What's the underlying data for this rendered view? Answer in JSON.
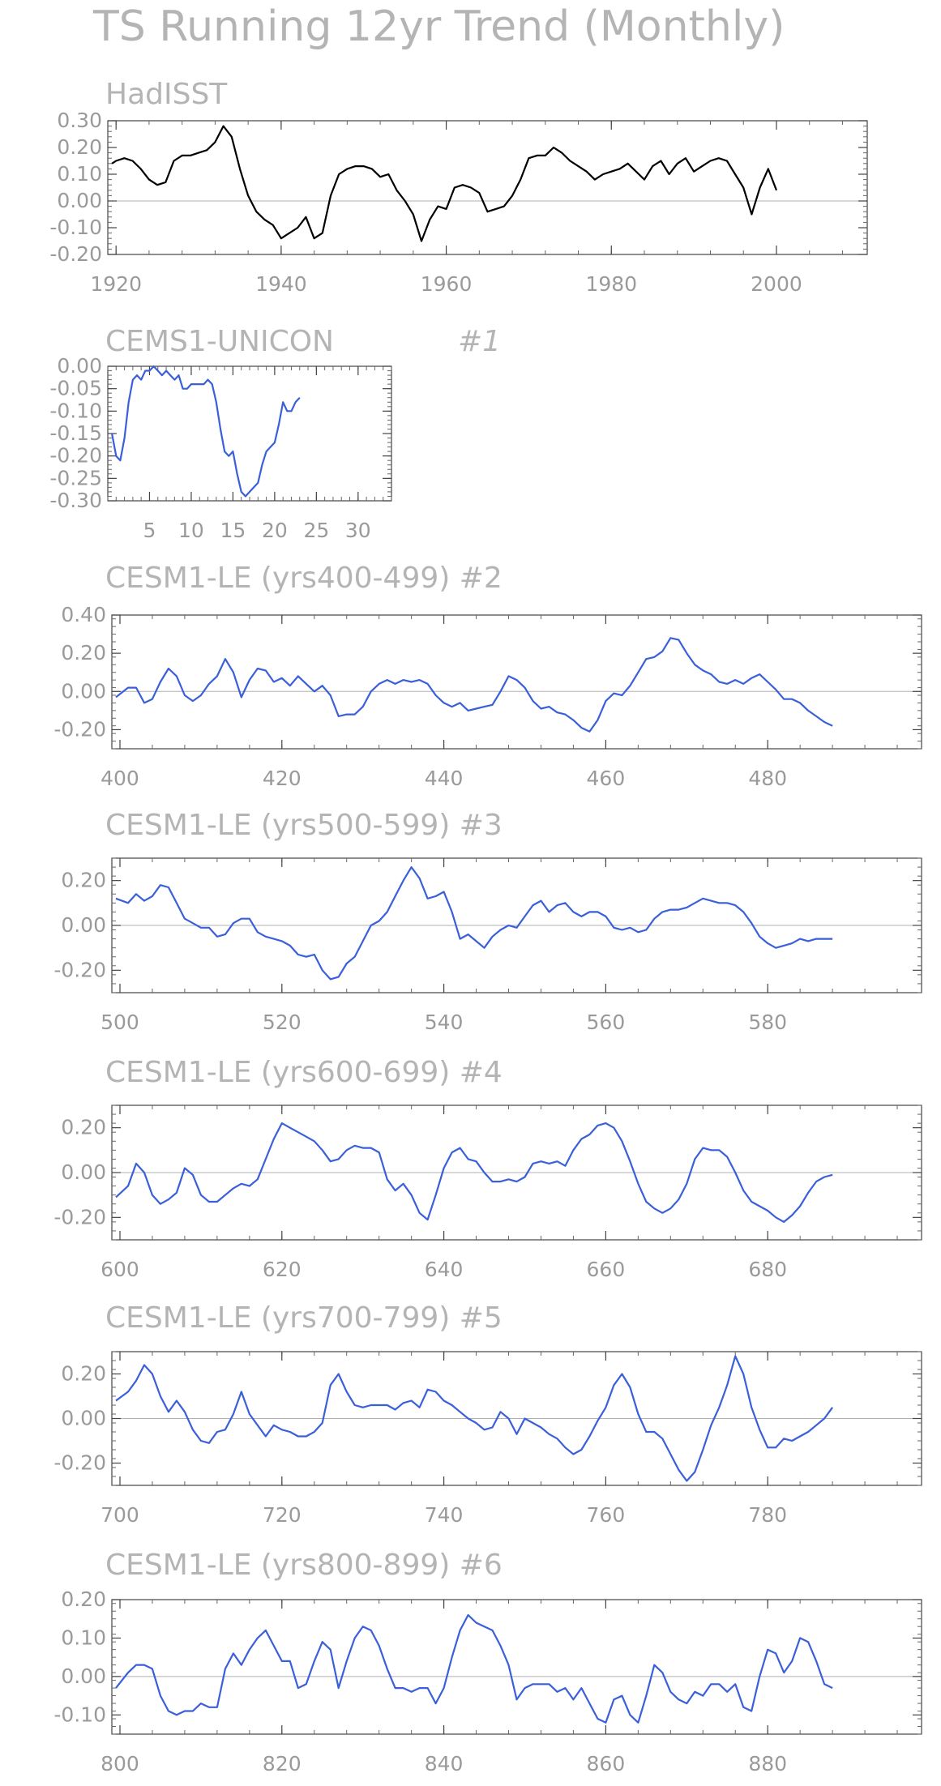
{
  "title": "TS Running 12yr Trend (Monthly)",
  "colors": {
    "observed": "#000000",
    "model": "#3a5fd9",
    "zero_line": "#b0b0b0",
    "frame": "#444444",
    "text": "#a0a0a0"
  },
  "chart_data": [
    {
      "type": "line",
      "title": "HadISST",
      "series_name": "",
      "xlim": [
        1919,
        2011
      ],
      "ylim": [
        -0.2,
        0.3
      ],
      "xticks": [
        1920,
        1940,
        1960,
        1980,
        2000
      ],
      "yticks": [
        0.3,
        0.2,
        0.1,
        0.0,
        -0.1,
        -0.2
      ],
      "ytick_labels": [
        "0.30",
        "0.20",
        "0.10",
        "0.00",
        "-0.10",
        "-0.20"
      ],
      "zero_line": 0,
      "x": [
        1919.5,
        1920,
        1921,
        1922,
        1923,
        1924,
        1925,
        1926,
        1927,
        1928,
        1929,
        1930,
        1931,
        1932,
        1933,
        1934,
        1935,
        1936,
        1937,
        1938,
        1939,
        1940,
        1941,
        1942,
        1943,
        1944,
        1945,
        1946,
        1947,
        1948,
        1949,
        1950,
        1951,
        1952,
        1953,
        1954,
        1955,
        1956,
        1957,
        1958,
        1959,
        1960,
        1961,
        1962,
        1963,
        1964,
        1965,
        1966,
        1967,
        1968,
        1969,
        1970,
        1971,
        1972,
        1973,
        1974,
        1975,
        1976,
        1977,
        1978,
        1979,
        1980,
        1981,
        1982,
        1983,
        1984,
        1985,
        1986,
        1987,
        1988,
        1989,
        1990,
        1991,
        1992,
        1993,
        1994,
        1995,
        1996,
        1997,
        1998,
        1999,
        2000
      ],
      "y": [
        0.14,
        0.15,
        0.16,
        0.15,
        0.12,
        0.08,
        0.06,
        0.07,
        0.15,
        0.17,
        0.17,
        0.18,
        0.19,
        0.22,
        0.28,
        0.24,
        0.12,
        0.02,
        -0.04,
        -0.07,
        -0.09,
        -0.14,
        -0.12,
        -0.1,
        -0.06,
        -0.14,
        -0.12,
        0.02,
        0.1,
        0.12,
        0.13,
        0.13,
        0.12,
        0.09,
        0.1,
        0.04,
        0.0,
        -0.05,
        -0.15,
        -0.07,
        -0.02,
        -0.03,
        0.05,
        0.06,
        0.05,
        0.03,
        -0.04,
        -0.03,
        -0.02,
        0.02,
        0.08,
        0.16,
        0.17,
        0.17,
        0.2,
        0.18,
        0.15,
        0.13,
        0.11,
        0.08,
        0.1,
        0.11,
        0.12,
        0.14,
        0.11,
        0.08,
        0.13,
        0.15,
        0.1,
        0.14,
        0.16,
        0.11,
        0.13,
        0.15,
        0.16,
        0.15,
        0.1,
        0.05,
        -0.05,
        0.05,
        0.12,
        0.04
      ]
    },
    {
      "type": "line",
      "title": "CEMS1-UNICON",
      "annotation": "#1",
      "xlim": [
        0,
        34
      ],
      "ylim": [
        -0.3,
        0.0
      ],
      "xticks": [
        5,
        10,
        15,
        20,
        25,
        30
      ],
      "yticks": [
        0.0,
        -0.05,
        -0.1,
        -0.15,
        -0.2,
        -0.25,
        -0.3
      ],
      "ytick_labels": [
        "0.00",
        "-0.05",
        "-0.10",
        "-0.15",
        "-0.20",
        "-0.25",
        "-0.30"
      ],
      "x": [
        0.5,
        1,
        1.5,
        2,
        2.5,
        3,
        3.5,
        4,
        4.5,
        5,
        5.5,
        6,
        6.5,
        7,
        7.5,
        8,
        8.5,
        9,
        9.5,
        10,
        10.5,
        11,
        11.5,
        12,
        12.5,
        13,
        13.5,
        14,
        14.5,
        15,
        15.5,
        16,
        16.5,
        17,
        17.5,
        18,
        18.5,
        19,
        19.5,
        20,
        20.5,
        21,
        21.5,
        22,
        22.5,
        23
      ],
      "y": [
        -0.15,
        -0.2,
        -0.21,
        -0.16,
        -0.08,
        -0.03,
        -0.02,
        -0.03,
        -0.01,
        -0.01,
        0.0,
        -0.01,
        -0.02,
        -0.01,
        -0.02,
        -0.03,
        -0.02,
        -0.05,
        -0.05,
        -0.04,
        -0.04,
        -0.04,
        -0.04,
        -0.03,
        -0.04,
        -0.08,
        -0.14,
        -0.19,
        -0.2,
        -0.19,
        -0.24,
        -0.28,
        -0.29,
        -0.28,
        -0.27,
        -0.26,
        -0.22,
        -0.19,
        -0.18,
        -0.17,
        -0.13,
        -0.08,
        -0.1,
        -0.1,
        -0.08,
        -0.07
      ]
    },
    {
      "type": "line",
      "title": "CESM1-LE (yrs400-499) #2",
      "xlim": [
        399,
        499
      ],
      "ylim": [
        -0.3,
        0.4
      ],
      "xticks": [
        400,
        420,
        440,
        460,
        480
      ],
      "yticks": [
        0.4,
        0.2,
        0.0,
        -0.2
      ],
      "ytick_labels": [
        "0.40",
        "0.20",
        "0.00",
        "-0.20"
      ],
      "zero_line": 0,
      "x": [
        399.5,
        401,
        402,
        403,
        404,
        405,
        406,
        407,
        408,
        409,
        410,
        411,
        412,
        413,
        414,
        415,
        416,
        417,
        418,
        419,
        420,
        421,
        422,
        423,
        424,
        425,
        426,
        427,
        428,
        429,
        430,
        431,
        432,
        433,
        434,
        435,
        436,
        437,
        438,
        439,
        440,
        441,
        442,
        443,
        444,
        445,
        446,
        447,
        448,
        449,
        450,
        451,
        452,
        453,
        454,
        455,
        456,
        457,
        458,
        459,
        460,
        461,
        462,
        463,
        464,
        465,
        466,
        467,
        468,
        469,
        470,
        471,
        472,
        473,
        474,
        475,
        476,
        477,
        478,
        479,
        480,
        481,
        482,
        483,
        484,
        485,
        486,
        487,
        488
      ],
      "y": [
        -0.03,
        0.02,
        0.02,
        -0.06,
        -0.04,
        0.05,
        0.12,
        0.08,
        -0.02,
        -0.05,
        -0.02,
        0.04,
        0.08,
        0.17,
        0.1,
        -0.03,
        0.06,
        0.12,
        0.11,
        0.05,
        0.07,
        0.03,
        0.08,
        0.04,
        0.0,
        0.03,
        -0.02,
        -0.13,
        -0.12,
        -0.12,
        -0.08,
        0.0,
        0.04,
        0.06,
        0.04,
        0.06,
        0.05,
        0.06,
        0.04,
        -0.02,
        -0.06,
        -0.08,
        -0.06,
        -0.1,
        -0.09,
        -0.08,
        -0.07,
        0.0,
        0.08,
        0.06,
        0.02,
        -0.05,
        -0.09,
        -0.08,
        -0.11,
        -0.12,
        -0.15,
        -0.19,
        -0.21,
        -0.15,
        -0.05,
        -0.01,
        -0.02,
        0.03,
        0.1,
        0.17,
        0.18,
        0.21,
        0.28,
        0.27,
        0.2,
        0.14,
        0.11,
        0.09,
        0.05,
        0.04,
        0.06,
        0.04,
        0.07,
        0.09,
        0.05,
        0.01,
        -0.04,
        -0.04,
        -0.06,
        -0.1,
        -0.13,
        -0.16,
        -0.18
      ]
    },
    {
      "type": "line",
      "title": "CESM1-LE (yrs500-599) #3",
      "xlim": [
        499,
        599
      ],
      "ylim": [
        -0.3,
        0.3
      ],
      "xticks": [
        500,
        520,
        540,
        560,
        580
      ],
      "yticks": [
        0.2,
        0.0,
        -0.2
      ],
      "ytick_labels": [
        "0.20",
        "0.00",
        "-0.20"
      ],
      "zero_line": 0,
      "x": [
        499.5,
        501,
        502,
        503,
        504,
        505,
        506,
        507,
        508,
        509,
        510,
        511,
        512,
        513,
        514,
        515,
        516,
        517,
        518,
        519,
        520,
        521,
        522,
        523,
        524,
        525,
        526,
        527,
        528,
        529,
        530,
        531,
        532,
        533,
        534,
        535,
        536,
        537,
        538,
        539,
        540,
        541,
        542,
        543,
        544,
        545,
        546,
        547,
        548,
        549,
        550,
        551,
        552,
        553,
        554,
        555,
        556,
        557,
        558,
        559,
        560,
        561,
        562,
        563,
        564,
        565,
        566,
        567,
        568,
        569,
        570,
        571,
        572,
        573,
        574,
        575,
        576,
        577,
        578,
        579,
        580,
        581,
        582,
        583,
        584,
        585,
        586,
        587,
        588
      ],
      "y": [
        0.12,
        0.1,
        0.14,
        0.11,
        0.13,
        0.18,
        0.17,
        0.1,
        0.03,
        0.01,
        -0.01,
        -0.01,
        -0.05,
        -0.04,
        0.01,
        0.03,
        0.03,
        -0.03,
        -0.05,
        -0.06,
        -0.07,
        -0.09,
        -0.13,
        -0.14,
        -0.13,
        -0.2,
        -0.24,
        -0.23,
        -0.17,
        -0.14,
        -0.07,
        0.0,
        0.02,
        0.06,
        0.13,
        0.2,
        0.26,
        0.21,
        0.12,
        0.13,
        0.15,
        0.06,
        -0.06,
        -0.04,
        -0.07,
        -0.1,
        -0.05,
        -0.02,
        0.0,
        -0.01,
        0.04,
        0.09,
        0.11,
        0.06,
        0.09,
        0.1,
        0.06,
        0.04,
        0.06,
        0.06,
        0.04,
        -0.01,
        -0.02,
        -0.01,
        -0.03,
        -0.02,
        0.03,
        0.06,
        0.07,
        0.07,
        0.08,
        0.1,
        0.12,
        0.11,
        0.1,
        0.1,
        0.09,
        0.06,
        0.01,
        -0.05,
        -0.08,
        -0.1,
        -0.09,
        -0.08,
        -0.06,
        -0.07,
        -0.06,
        -0.06,
        -0.06
      ]
    },
    {
      "type": "line",
      "title": "CESM1-LE (yrs600-699) #4",
      "xlim": [
        599,
        699
      ],
      "ylim": [
        -0.3,
        0.3
      ],
      "xticks": [
        600,
        620,
        640,
        660,
        680
      ],
      "yticks": [
        0.2,
        0.0,
        -0.2
      ],
      "ytick_labels": [
        "0.20",
        "0.00",
        "-0.20"
      ],
      "zero_line": 0,
      "x": [
        599.5,
        601,
        602,
        603,
        604,
        605,
        606,
        607,
        608,
        609,
        610,
        611,
        612,
        613,
        614,
        615,
        616,
        617,
        618,
        619,
        620,
        621,
        622,
        623,
        624,
        625,
        626,
        627,
        628,
        629,
        630,
        631,
        632,
        633,
        634,
        635,
        636,
        637,
        638,
        639,
        640,
        641,
        642,
        643,
        644,
        645,
        646,
        647,
        648,
        649,
        650,
        651,
        652,
        653,
        654,
        655,
        656,
        657,
        658,
        659,
        660,
        661,
        662,
        663,
        664,
        665,
        666,
        667,
        668,
        669,
        670,
        671,
        672,
        673,
        674,
        675,
        676,
        677,
        678,
        679,
        680,
        681,
        682,
        683,
        684,
        685,
        686,
        687,
        688
      ],
      "y": [
        -0.11,
        -0.06,
        0.04,
        0.0,
        -0.1,
        -0.14,
        -0.12,
        -0.09,
        0.02,
        -0.01,
        -0.1,
        -0.13,
        -0.13,
        -0.1,
        -0.07,
        -0.05,
        -0.06,
        -0.03,
        0.06,
        0.15,
        0.22,
        0.2,
        0.18,
        0.16,
        0.14,
        0.1,
        0.05,
        0.06,
        0.1,
        0.12,
        0.11,
        0.11,
        0.09,
        -0.03,
        -0.08,
        -0.05,
        -0.1,
        -0.18,
        -0.21,
        -0.1,
        0.02,
        0.09,
        0.11,
        0.06,
        0.05,
        0.0,
        -0.04,
        -0.04,
        -0.03,
        -0.04,
        -0.02,
        0.04,
        0.05,
        0.04,
        0.05,
        0.03,
        0.1,
        0.15,
        0.17,
        0.21,
        0.22,
        0.2,
        0.14,
        0.05,
        -0.05,
        -0.13,
        -0.16,
        -0.18,
        -0.16,
        -0.12,
        -0.05,
        0.06,
        0.11,
        0.1,
        0.1,
        0.07,
        0.0,
        -0.08,
        -0.13,
        -0.15,
        -0.17,
        -0.2,
        -0.22,
        -0.19,
        -0.15,
        -0.09,
        -0.04,
        -0.02,
        -0.01
      ]
    },
    {
      "type": "line",
      "title": "CESM1-LE (yrs700-799) #5",
      "xlim": [
        699,
        799
      ],
      "ylim": [
        -0.3,
        0.3
      ],
      "xticks": [
        700,
        720,
        740,
        760,
        780
      ],
      "yticks": [
        0.2,
        0.0,
        -0.2
      ],
      "ytick_labels": [
        "0.20",
        "0.00",
        "-0.20"
      ],
      "zero_line": 0,
      "x": [
        699.5,
        701,
        702,
        703,
        704,
        705,
        706,
        707,
        708,
        709,
        710,
        711,
        712,
        713,
        714,
        715,
        716,
        717,
        718,
        719,
        720,
        721,
        722,
        723,
        724,
        725,
        726,
        727,
        728,
        729,
        730,
        731,
        732,
        733,
        734,
        735,
        736,
        737,
        738,
        739,
        740,
        741,
        742,
        743,
        744,
        745,
        746,
        747,
        748,
        749,
        750,
        751,
        752,
        753,
        754,
        755,
        756,
        757,
        758,
        759,
        760,
        761,
        762,
        763,
        764,
        765,
        766,
        767,
        768,
        769,
        770,
        771,
        772,
        773,
        774,
        775,
        776,
        777,
        778,
        779,
        780,
        781,
        782,
        783,
        784,
        785,
        786,
        787,
        788
      ],
      "y": [
        0.08,
        0.12,
        0.17,
        0.24,
        0.2,
        0.1,
        0.03,
        0.08,
        0.03,
        -0.05,
        -0.1,
        -0.11,
        -0.06,
        -0.05,
        0.02,
        0.12,
        0.02,
        -0.03,
        -0.08,
        -0.03,
        -0.05,
        -0.06,
        -0.08,
        -0.08,
        -0.06,
        -0.02,
        0.15,
        0.2,
        0.12,
        0.06,
        0.05,
        0.06,
        0.06,
        0.06,
        0.04,
        0.07,
        0.08,
        0.05,
        0.13,
        0.12,
        0.08,
        0.06,
        0.03,
        0.0,
        -0.02,
        -0.05,
        -0.04,
        0.03,
        0.0,
        -0.07,
        0.0,
        -0.02,
        -0.04,
        -0.07,
        -0.09,
        -0.13,
        -0.16,
        -0.14,
        -0.08,
        -0.01,
        0.05,
        0.15,
        0.2,
        0.14,
        0.02,
        -0.06,
        -0.06,
        -0.09,
        -0.16,
        -0.23,
        -0.28,
        -0.24,
        -0.14,
        -0.03,
        0.05,
        0.15,
        0.28,
        0.2,
        0.05,
        -0.05,
        -0.13,
        -0.13,
        -0.09,
        -0.1,
        -0.08,
        -0.06,
        -0.03,
        0.0,
        0.05
      ]
    },
    {
      "type": "line",
      "title": "CESM1-LE (yrs800-899) #6",
      "xlim": [
        799,
        899
      ],
      "ylim": [
        -0.15,
        0.2
      ],
      "xticks": [
        800,
        820,
        840,
        860,
        880
      ],
      "yticks": [
        0.2,
        0.1,
        0.0,
        -0.1
      ],
      "ytick_labels": [
        "0.20",
        "0.10",
        "0.00",
        "-0.10"
      ],
      "zero_line": 0,
      "x": [
        799.5,
        801,
        802,
        803,
        804,
        805,
        806,
        807,
        808,
        809,
        810,
        811,
        812,
        813,
        814,
        815,
        816,
        817,
        818,
        819,
        820,
        821,
        822,
        823,
        824,
        825,
        826,
        827,
        828,
        829,
        830,
        831,
        832,
        833,
        834,
        835,
        836,
        837,
        838,
        839,
        840,
        841,
        842,
        843,
        844,
        845,
        846,
        847,
        848,
        849,
        850,
        851,
        852,
        853,
        854,
        855,
        856,
        857,
        858,
        859,
        860,
        861,
        862,
        863,
        864,
        865,
        866,
        867,
        868,
        869,
        870,
        871,
        872,
        873,
        874,
        875,
        876,
        877,
        878,
        879,
        880,
        881,
        882,
        883,
        884,
        885,
        886,
        887,
        888
      ],
      "y": [
        -0.03,
        0.01,
        0.03,
        0.03,
        0.02,
        -0.05,
        -0.09,
        -0.1,
        -0.09,
        -0.09,
        -0.07,
        -0.08,
        -0.08,
        0.02,
        0.06,
        0.03,
        0.07,
        0.1,
        0.12,
        0.08,
        0.04,
        0.04,
        -0.03,
        -0.02,
        0.04,
        0.09,
        0.07,
        -0.03,
        0.04,
        0.1,
        0.13,
        0.12,
        0.08,
        0.02,
        -0.03,
        -0.03,
        -0.04,
        -0.03,
        -0.03,
        -0.07,
        -0.03,
        0.05,
        0.12,
        0.16,
        0.14,
        0.13,
        0.12,
        0.08,
        0.03,
        -0.06,
        -0.03,
        -0.02,
        -0.02,
        -0.02,
        -0.04,
        -0.03,
        -0.06,
        -0.03,
        -0.07,
        -0.11,
        -0.12,
        -0.06,
        -0.05,
        -0.1,
        -0.12,
        -0.05,
        0.03,
        0.01,
        -0.04,
        -0.06,
        -0.07,
        -0.04,
        -0.05,
        -0.02,
        -0.02,
        -0.04,
        -0.02,
        -0.08,
        -0.09,
        0.0,
        0.07,
        0.06,
        0.01,
        0.04,
        0.1,
        0.09,
        0.04,
        -0.02,
        -0.03
      ]
    }
  ]
}
